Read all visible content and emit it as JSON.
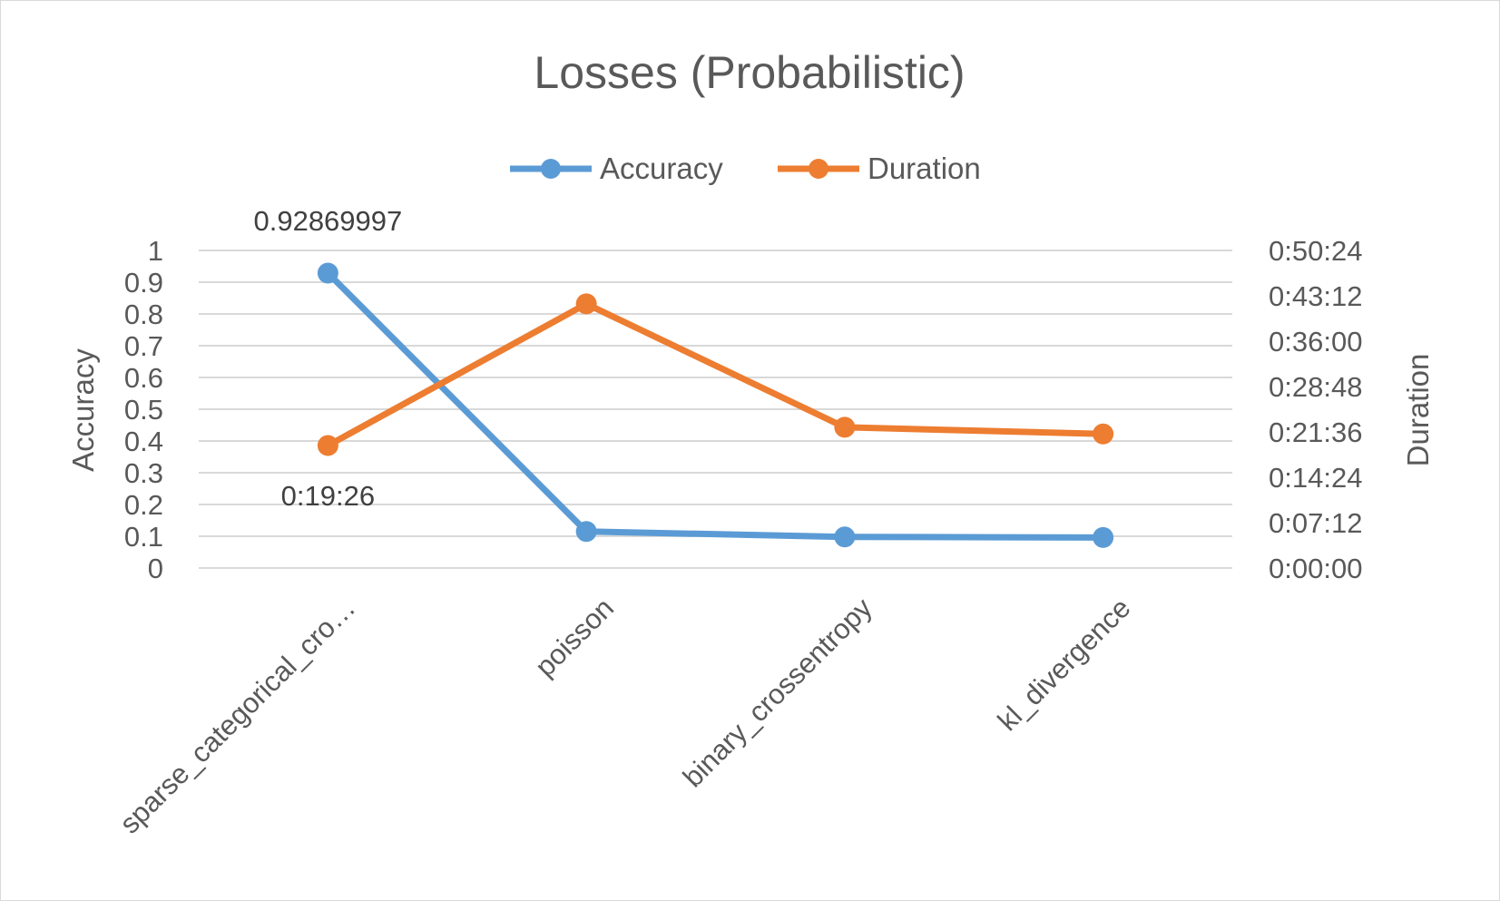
{
  "chart_data": {
    "type": "line",
    "title": "Losses (Probabilistic)",
    "categories": [
      "sparse_categorical_cro…",
      "poisson",
      "binary_crossentropy",
      "kl_divergence"
    ],
    "series": [
      {
        "name": "Accuracy",
        "axis": "left",
        "color": "#5b9bd5",
        "values": [
          0.92869997,
          0.115,
          0.098,
          0.096
        ]
      },
      {
        "name": "Duration",
        "axis": "right",
        "color": "#ed7d31",
        "values": [
          "0:19:26",
          "0:41:55",
          "0:22:20",
          "0:21:17"
        ],
        "values_seconds": [
          1166,
          2515,
          1340,
          1277
        ]
      }
    ],
    "data_labels": [
      {
        "series": "Accuracy",
        "index": 0,
        "text": "0.92869997"
      },
      {
        "series": "Duration",
        "index": 0,
        "text": "0:19:26"
      }
    ],
    "y_left": {
      "label": "Accuracy",
      "ylim": [
        0,
        1
      ],
      "ticks": [
        "0",
        "0.1",
        "0.2",
        "0.3",
        "0.4",
        "0.5",
        "0.6",
        "0.7",
        "0.8",
        "0.9",
        "1"
      ]
    },
    "y_right": {
      "label": "Duration",
      "ylim_seconds": [
        0,
        3024
      ],
      "ticks": [
        "0:00:00",
        "0:07:12",
        "0:14:24",
        "0:21:36",
        "0:28:48",
        "0:36:00",
        "0:43:12",
        "0:50:24"
      ]
    },
    "legend": {
      "position": "top",
      "entries": [
        "Accuracy",
        "Duration"
      ]
    },
    "grid": true
  }
}
